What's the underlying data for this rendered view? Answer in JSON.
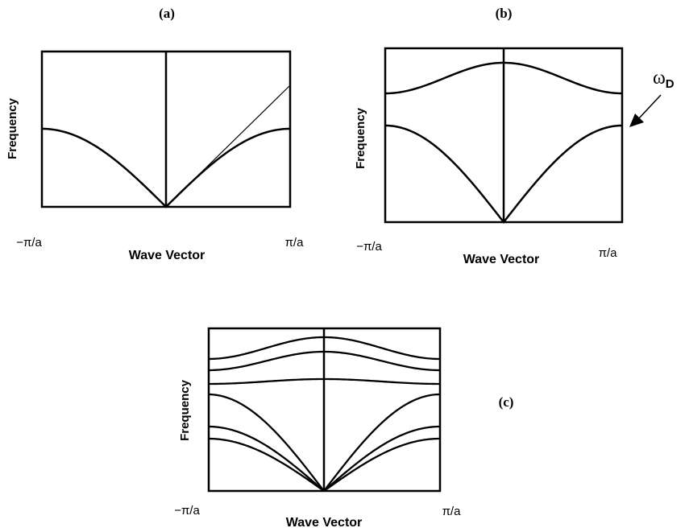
{
  "panels": [
    {
      "id": "a",
      "label": "(a)",
      "xlabel": "Wave Vector",
      "ylabel": "Frequency",
      "xtick_left": "−π/a",
      "xtick_right": "π/a",
      "curves": [
        "acoustic-branch",
        "linear-approximation"
      ]
    },
    {
      "id": "b",
      "label": "(b)",
      "xlabel": "Wave Vector",
      "ylabel": "Frequency",
      "xtick_left": "−π/a",
      "xtick_right": "π/a",
      "annotation": {
        "symbol": "ω",
        "subscript": "D"
      },
      "curves": [
        "acoustic-branch",
        "optical-branch"
      ]
    },
    {
      "id": "c",
      "label": "(c)",
      "xlabel": "Wave Vector",
      "ylabel": "Frequency",
      "xtick_left": "−π/a",
      "xtick_right": "π/a",
      "curves": [
        "acoustic-1",
        "acoustic-2",
        "acoustic-3",
        "optical-1",
        "optical-2",
        "optical-3"
      ]
    }
  ]
}
